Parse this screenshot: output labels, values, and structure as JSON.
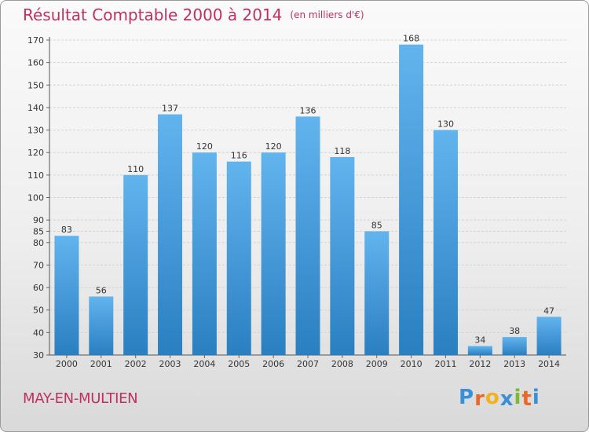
{
  "title": "Résultat Comptable 2000 à 2014",
  "unit": "(en milliers d'€)",
  "commune": "MAY-EN-MULTIEN",
  "logo": {
    "text": "Proxiti",
    "letters": [
      "P",
      "r",
      "o",
      "x",
      "i",
      "t",
      "i"
    ],
    "colors": [
      "#3a8fd6",
      "#e8682a",
      "#f2b21c",
      "#3a8fd6",
      "#7dbb2e",
      "#e8682a",
      "#3a8fd6"
    ]
  },
  "colors": {
    "title": "#c0305f",
    "bar_top": "#62b4ee",
    "bar_bottom": "#2a7fc1"
  },
  "chart_data": {
    "type": "bar",
    "title": "Résultat Comptable 2000 à 2014",
    "ylabel": "(en milliers d'€)",
    "categories": [
      "2000",
      "2001",
      "2002",
      "2003",
      "2004",
      "2005",
      "2006",
      "2007",
      "2008",
      "2009",
      "2010",
      "2011",
      "2012",
      "2013",
      "2014"
    ],
    "values": [
      83,
      56,
      110,
      137,
      120,
      116,
      120,
      136,
      118,
      85,
      168,
      130,
      34,
      38,
      47
    ],
    "ylim": [
      30,
      170
    ],
    "yticks": [
      30,
      40,
      50,
      60,
      70,
      80,
      85,
      90,
      100,
      110,
      120,
      130,
      140,
      150,
      160,
      170
    ],
    "grid": true,
    "data_labels": true
  }
}
